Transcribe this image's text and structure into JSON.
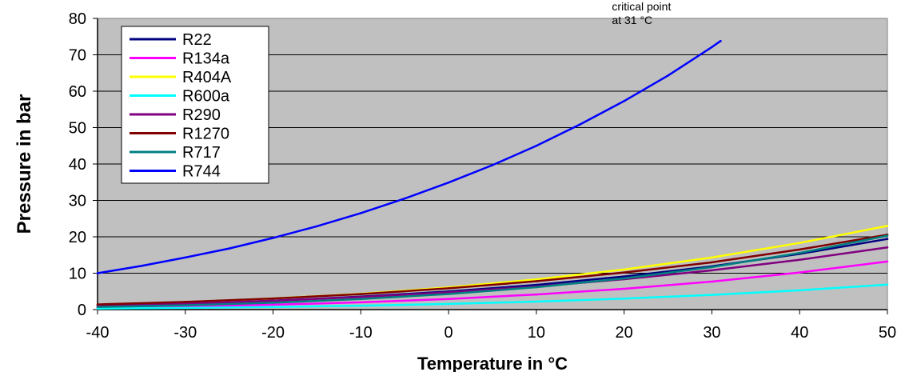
{
  "chart_data": {
    "type": "line",
    "xlabel": "Temperature in °C",
    "ylabel": "Pressure in bar",
    "xlim": [
      -40,
      50
    ],
    "ylim": [
      0,
      80
    ],
    "x_ticks": [
      "-40",
      "-30",
      "-20",
      "-10",
      "0",
      "10",
      "20",
      "30",
      "40",
      "50"
    ],
    "y_ticks": [
      "0",
      "10",
      "20",
      "30",
      "40",
      "50",
      "60",
      "70",
      "80"
    ],
    "grid": "horizontal",
    "legend_position": "top-left",
    "background_color": "#c0c0c0",
    "series": [
      {
        "name": "R22",
        "color": "#000080",
        "x": [
          -40,
          -30,
          -20,
          -10,
          0,
          10,
          20,
          30,
          40,
          50
        ],
        "y": [
          1.05,
          1.6,
          2.45,
          3.55,
          4.98,
          6.8,
          9.1,
          11.9,
          15.3,
          19.4
        ]
      },
      {
        "name": "R134a",
        "color": "#ff00ff",
        "x": [
          -40,
          -30,
          -20,
          -10,
          0,
          10,
          20,
          30,
          40,
          50
        ],
        "y": [
          0.51,
          0.84,
          1.33,
          2.0,
          2.93,
          4.15,
          5.72,
          7.7,
          10.2,
          13.2
        ]
      },
      {
        "name": "R404A",
        "color": "#ffff00",
        "x": [
          -40,
          -30,
          -20,
          -10,
          0,
          10,
          20,
          30,
          40,
          50
        ],
        "y": [
          1.32,
          2.05,
          3.05,
          4.35,
          6.1,
          8.3,
          11.0,
          14.3,
          18.3,
          23.0
        ]
      },
      {
        "name": "R600a",
        "color": "#00ffff",
        "x": [
          -40,
          -30,
          -20,
          -10,
          0,
          10,
          20,
          30,
          40,
          50
        ],
        "y": [
          0.29,
          0.47,
          0.72,
          1.08,
          1.57,
          2.2,
          3.02,
          4.05,
          5.3,
          6.85
        ]
      },
      {
        "name": "R290",
        "color": "#800080",
        "x": [
          -40,
          -30,
          -20,
          -10,
          0,
          10,
          20,
          30,
          40,
          50
        ],
        "y": [
          1.11,
          1.68,
          2.44,
          3.45,
          4.74,
          6.36,
          8.36,
          10.8,
          13.7,
          17.1
        ]
      },
      {
        "name": "R1270",
        "color": "#800000",
        "x": [
          -40,
          -30,
          -20,
          -10,
          0,
          10,
          20,
          30,
          40,
          50
        ],
        "y": [
          1.43,
          2.12,
          3.06,
          4.27,
          5.85,
          7.8,
          10.2,
          13.0,
          16.5,
          20.6
        ]
      },
      {
        "name": "R717",
        "color": "#008080",
        "x": [
          -40,
          -30,
          -20,
          -10,
          0,
          10,
          20,
          30,
          40,
          50
        ],
        "y": [
          0.72,
          1.19,
          1.9,
          2.91,
          4.29,
          6.15,
          8.57,
          11.67,
          15.55,
          20.3
        ]
      },
      {
        "name": "R744",
        "color": "#0000ff",
        "x": [
          -40,
          -35,
          -30,
          -25,
          -20,
          -15,
          -10,
          -5,
          0,
          5,
          10,
          15,
          20,
          25,
          30,
          31
        ],
        "y": [
          10.0,
          12.0,
          14.3,
          16.8,
          19.7,
          22.9,
          26.5,
          30.5,
          34.9,
          39.7,
          45.0,
          50.9,
          57.3,
          64.3,
          72.1,
          73.8
        ]
      }
    ],
    "annotations": [
      {
        "lines": [
          "critical point",
          "at 31 °C"
        ],
        "x": 31,
        "y": 73.8
      }
    ]
  }
}
